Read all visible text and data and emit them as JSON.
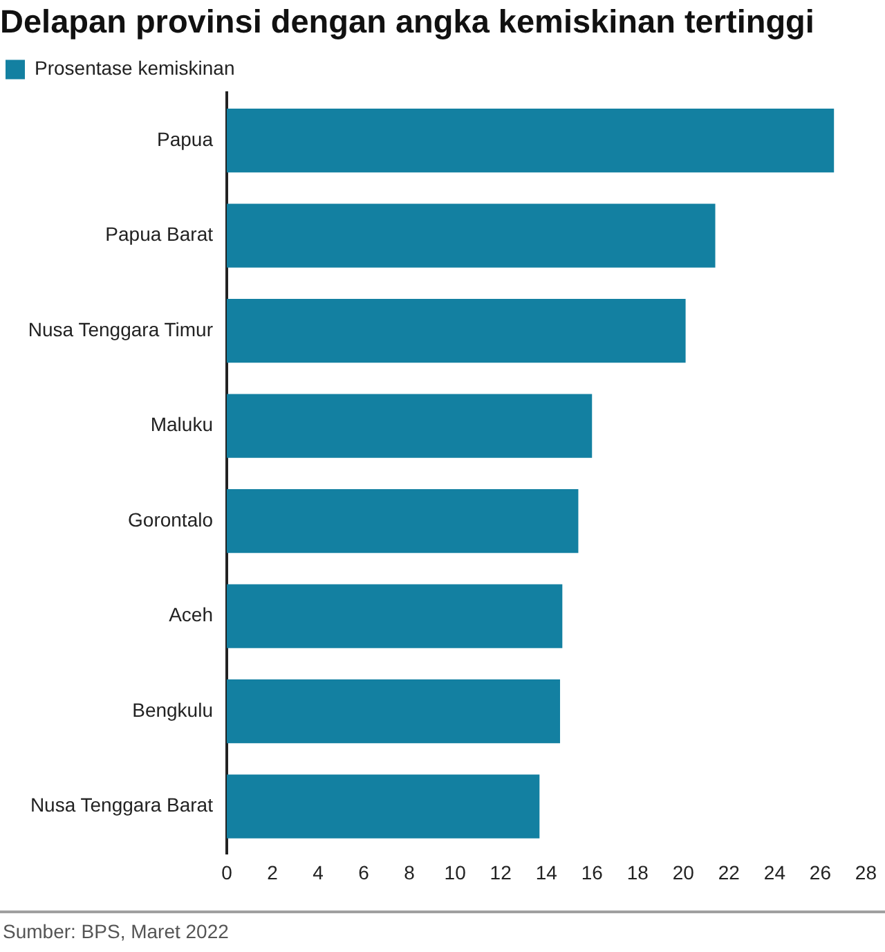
{
  "chart_data": {
    "type": "bar",
    "orientation": "horizontal",
    "title": "Delapan provinsi dengan angka kemiskinan tertinggi",
    "categories": [
      "Papua",
      "Papua Barat",
      "Nusa Tenggara Timur",
      "Maluku",
      "Gorontalo",
      "Aceh",
      "Bengkulu",
      "Nusa Tenggara Barat"
    ],
    "series": [
      {
        "name": "Prosentase kemiskinan",
        "color": "#1380a1",
        "values": [
          26.6,
          21.4,
          20.1,
          16.0,
          15.4,
          14.7,
          14.6,
          13.7
        ]
      }
    ],
    "xlim": [
      0,
      28
    ],
    "xticks": [
      0,
      2,
      4,
      6,
      8,
      10,
      12,
      14,
      16,
      18,
      20,
      22,
      24,
      26,
      28
    ],
    "legend": "top left",
    "annotations": [
      "Sumber: BPS, Maret 2022"
    ]
  }
}
